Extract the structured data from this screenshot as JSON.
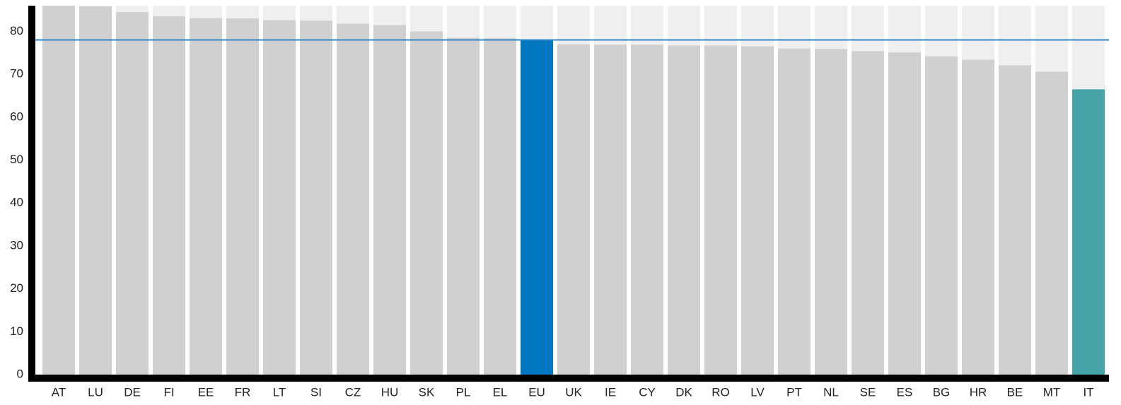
{
  "chart_data": {
    "type": "bar",
    "categories": [
      "AT",
      "LU",
      "DE",
      "FI",
      "EE",
      "FR",
      "LT",
      "SI",
      "CZ",
      "HU",
      "SK",
      "PL",
      "EL",
      "EU",
      "UK",
      "IE",
      "CY",
      "DK",
      "RO",
      "LV",
      "PT",
      "NL",
      "SE",
      "ES",
      "BG",
      "HR",
      "BE",
      "MT",
      "IT"
    ],
    "values": [
      86.0,
      85.8,
      84.5,
      83.5,
      83.1,
      83.0,
      82.6,
      82.5,
      81.8,
      81.5,
      80.0,
      78.5,
      78.4,
      78.0,
      77.0,
      76.9,
      76.9,
      76.7,
      76.7,
      76.5,
      76.0,
      75.9,
      75.4,
      75.1,
      74.2,
      73.4,
      72.1,
      70.6,
      66.5
    ],
    "colors": [
      "#d0d0d0",
      "#d0d0d0",
      "#d0d0d0",
      "#d0d0d0",
      "#d0d0d0",
      "#d0d0d0",
      "#d0d0d0",
      "#d0d0d0",
      "#d0d0d0",
      "#d0d0d0",
      "#d0d0d0",
      "#d0d0d0",
      "#d0d0d0",
      "#0077c0",
      "#d0d0d0",
      "#d0d0d0",
      "#d0d0d0",
      "#d0d0d0",
      "#d0d0d0",
      "#d0d0d0",
      "#d0d0d0",
      "#d0d0d0",
      "#d0d0d0",
      "#d0d0d0",
      "#d0d0d0",
      "#d0d0d0",
      "#d0d0d0",
      "#d0d0d0",
      "#46a3a8"
    ],
    "background_color": "#efefef",
    "reference_category": "EU",
    "reference_color": "#2f86cc",
    "ylim": [
      0,
      86
    ],
    "yticks": [
      0,
      10,
      20,
      30,
      40,
      50,
      60,
      70,
      80
    ]
  }
}
